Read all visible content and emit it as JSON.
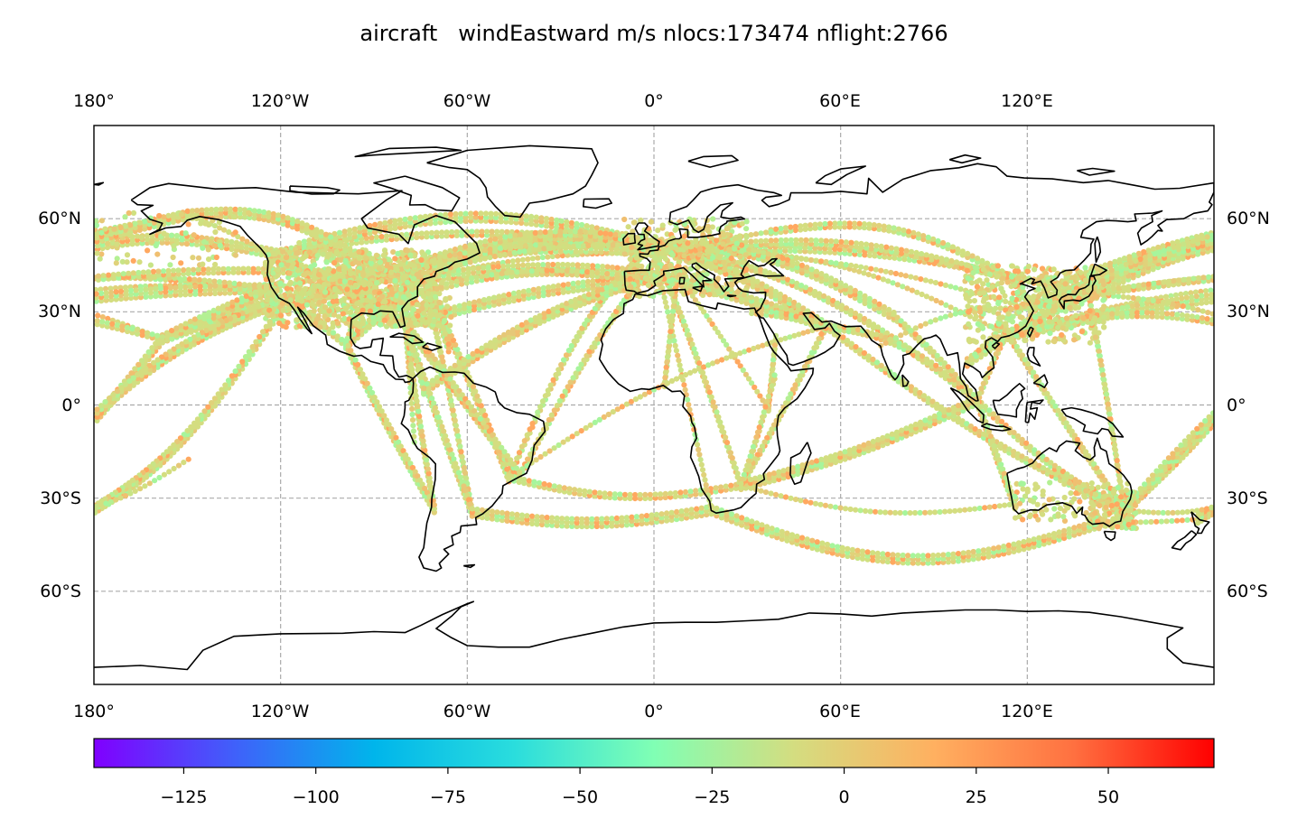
{
  "title": "aircraft   windEastward m/s nlocs:173474 nflight:2766",
  "colors": {
    "background": "#ffffff",
    "gridline": "#aaaaaa",
    "coastline": "#000000",
    "colormap_stops": [
      "#8000ff",
      "#4060fa",
      "#00b5eb",
      "#2adddd",
      "#80ffb4",
      "#d4dd80",
      "#ffb060",
      "#ff7040",
      "#ff0000"
    ]
  },
  "map": {
    "projection": "PlateCarree",
    "central_longitude": 0,
    "extent": {
      "lon": [
        -180,
        180
      ],
      "lat": [
        -90,
        90
      ]
    },
    "gridlines": "dashed",
    "longitude_labels": [
      "180°",
      "120°W",
      "60°W",
      "0°",
      "60°E",
      "120°E"
    ],
    "latitude_labels": [
      "60°N",
      "30°N",
      "0°",
      "30°S",
      "60°S"
    ]
  },
  "colorbar": {
    "orientation": "horizontal",
    "colormap": "rainbow",
    "range": [
      -142,
      70
    ],
    "tick_labels": [
      "−125",
      "−100",
      "−75",
      "−50",
      "−25",
      "0",
      "25",
      "50"
    ]
  }
}
